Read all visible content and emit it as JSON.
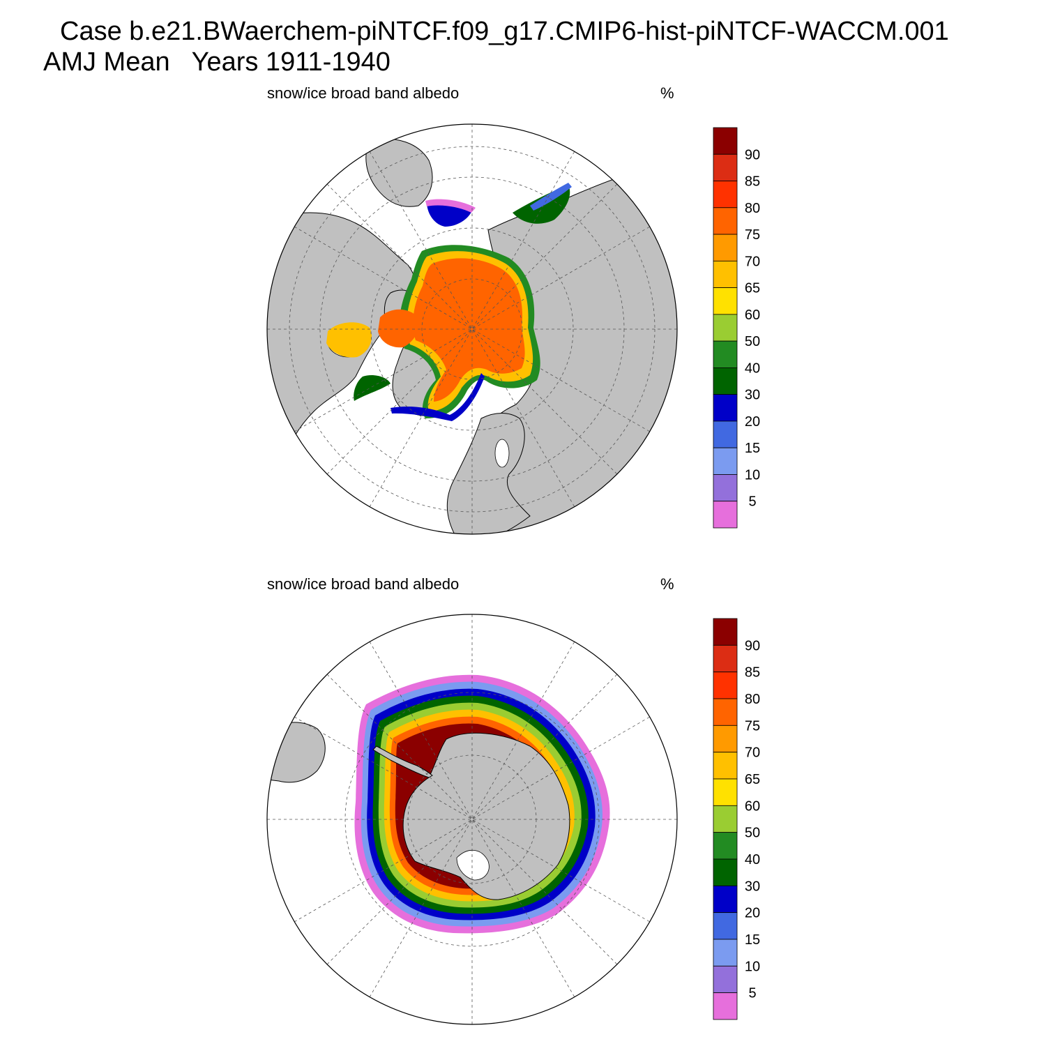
{
  "header": {
    "title_line1": "Case b.e21.BWaerchem-piNTCF.f09_g17.CMIP6-hist-piNTCF-WACCM.001",
    "title_line2": "AMJ Mean   Years 1911-1940"
  },
  "chart_data": [
    {
      "type": "heatmap",
      "projection": "north polar stereographic",
      "hemisphere": "north",
      "title": "snow/ice broad band albedo",
      "units": "%",
      "levels": [
        5,
        10,
        15,
        20,
        30,
        40,
        50,
        60,
        65,
        70,
        75,
        80,
        85,
        90
      ],
      "colors": [
        "#e66fdc",
        "#9370db",
        "#7b9bf0",
        "#4169e1",
        "#0000c8",
        "#006400",
        "#228b22",
        "#9acd32",
        "#ffe100",
        "#ffc000",
        "#ff9a00",
        "#ff6400",
        "#ff3200",
        "#dc2d14",
        "#8b0000"
      ],
      "land_color": "#c0c0c0",
      "dominant_value_range": [
        75,
        80
      ]
    },
    {
      "type": "heatmap",
      "projection": "south polar stereographic",
      "hemisphere": "south",
      "title": "snow/ice broad band albedo",
      "units": "%",
      "levels": [
        5,
        10,
        15,
        20,
        30,
        40,
        50,
        60,
        65,
        70,
        75,
        80,
        85,
        90
      ],
      "colors": [
        "#e66fdc",
        "#9370db",
        "#7b9bf0",
        "#4169e1",
        "#0000c8",
        "#006400",
        "#228b22",
        "#9acd32",
        "#ffe100",
        "#ffc000",
        "#ff9a00",
        "#ff6400",
        "#ff3200",
        "#dc2d14",
        "#8b0000"
      ],
      "land_color": "#c0c0c0",
      "dominant_value_range": [
        90,
        100
      ]
    }
  ]
}
